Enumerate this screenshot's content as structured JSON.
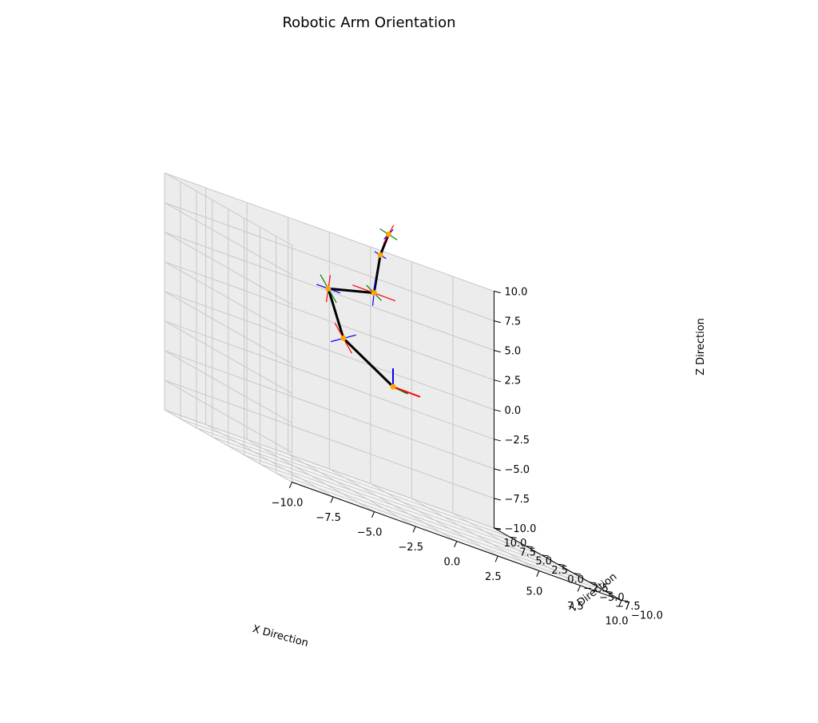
{
  "chart_data": {
    "type": "line3d",
    "title": "Robotic Arm Orientation",
    "xlabel": "X Direction",
    "ylabel": "Y Direction",
    "zlabel": "Z Direction",
    "xlim": [
      -10,
      10
    ],
    "ylim": [
      -10,
      10
    ],
    "zlim": [
      -10,
      10
    ],
    "ticks": {
      "x": [
        "−10.0",
        "−7.5",
        "−5.0",
        "−2.5",
        "0.0",
        "2.5",
        "5.0",
        "7.5",
        "10.0"
      ],
      "y": [
        "−10.0",
        "−7.5",
        "−5.0",
        "−2.5",
        "0.0",
        "2.5",
        "5.0",
        "7.5",
        "10.0"
      ],
      "z": [
        "−10.0",
        "−7.5",
        "−5.0",
        "−2.5",
        "0.0",
        "2.5",
        "5.0",
        "7.5",
        "10.0"
      ]
    },
    "grid": true,
    "joints": [
      {
        "x": 0.0,
        "y": 0.0,
        "z": 0.0
      },
      {
        "x": -1.0,
        "y": 5.2,
        "z": 2.0
      },
      {
        "x": -1.8,
        "y": 5.5,
        "z": 5.7
      },
      {
        "x": 0.7,
        "y": 4.8,
        "z": 6.8
      },
      {
        "x": 0.7,
        "y": 3.8,
        "z": 10.3
      },
      {
        "x": 1.2,
        "y": 3.8,
        "z": 12.3
      }
    ],
    "frames": [
      {
        "x": [
          1.5,
          -0.3,
          0.0
        ],
        "y": [
          0.4,
          -1.2,
          0.0
        ],
        "z": [
          0.0,
          0.0,
          1.5
        ]
      },
      {
        "x": [
          -0.5,
          0.0,
          1.0
        ],
        "y": [
          0.0,
          0.0,
          0.0
        ],
        "z": [
          -0.9,
          -0.4,
          -0.6
        ]
      },
      {
        "x": [
          0.0,
          0.3,
          -1.2
        ],
        "y": [
          -0.4,
          0.2,
          0.9
        ],
        "z": [
          -0.7,
          0.0,
          0.0
        ]
      },
      {
        "x": [
          1.2,
          -0.2,
          0.0
        ],
        "y": [
          -0.4,
          0.1,
          0.4
        ],
        "z": [
          0.0,
          0.2,
          -1.1
        ]
      },
      {
        "x": [
          0.0,
          0.1,
          0.0
        ],
        "y": [
          0.0,
          0.0,
          0.0
        ],
        "z": [
          0.6,
          0.7,
          -0.2
        ]
      },
      {
        "x": [
          0.3,
          0.0,
          0.9
        ],
        "y": [
          -0.5,
          0.0,
          0.2
        ],
        "z": [
          0.0,
          0.7,
          -0.6
        ]
      }
    ],
    "colors": {
      "arm": "#000000",
      "joint": "#ffa500",
      "x_axis": "#ff0000",
      "y_axis": "#008000",
      "z_axis": "#0000ff",
      "pane_left": "#f2f2f2",
      "pane_back": "#ececec",
      "pane_floor": "#f5f5f5",
      "grid": "#c8c8c8"
    }
  }
}
